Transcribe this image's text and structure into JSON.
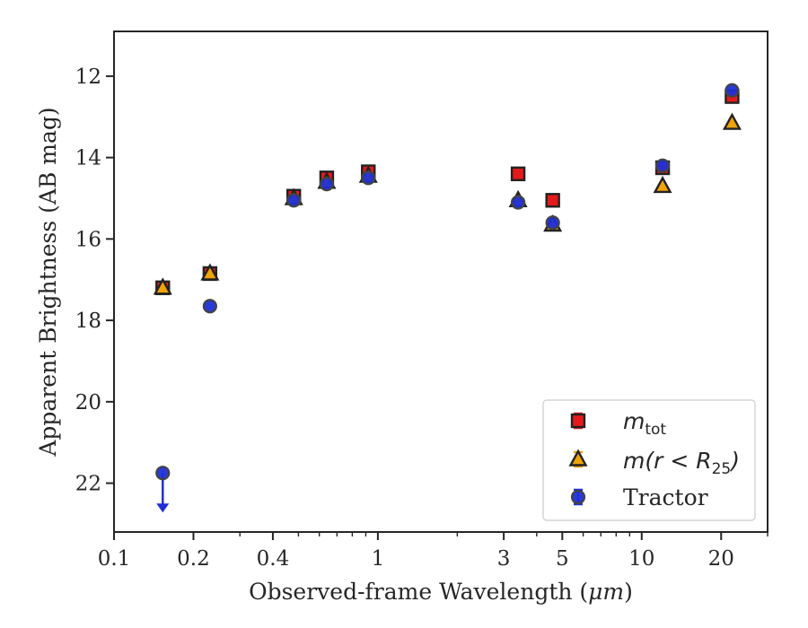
{
  "chart_data": {
    "type": "scatter",
    "xlabel_text": "Observed-frame Wavelength (",
    "xlabel_unit": "μm",
    "xlabel_close": ")",
    "ylabel": "Apparent Brightness (AB mag)",
    "xscale": "log",
    "yscale_inverted": true,
    "xlim": [
      0.1,
      30
    ],
    "ylim": [
      23.2,
      10.9
    ],
    "grid": false,
    "legend_position": "lower-right",
    "x_ticks": [
      {
        "value": 0.1,
        "label": "0.1"
      },
      {
        "value": 0.2,
        "label": "0.2"
      },
      {
        "value": 0.4,
        "label": "0.4"
      },
      {
        "value": 1,
        "label": "1"
      },
      {
        "value": 3,
        "label": "3"
      },
      {
        "value": 5,
        "label": "5"
      },
      {
        "value": 10,
        "label": "10"
      },
      {
        "value": 20,
        "label": "20"
      }
    ],
    "y_ticks": [
      {
        "value": 12,
        "label": "12"
      },
      {
        "value": 14,
        "label": "14"
      },
      {
        "value": 16,
        "label": "16"
      },
      {
        "value": 18,
        "label": "18"
      },
      {
        "value": 20,
        "label": "20"
      },
      {
        "value": 22,
        "label": "22"
      }
    ],
    "series": [
      {
        "key": "mtot",
        "legend_base": "m",
        "legend_sub": "tot",
        "marker": "square",
        "color": "#e41a1c",
        "edge": "#222222",
        "x": [
          0.153,
          0.231,
          0.48,
          0.64,
          0.92,
          3.4,
          4.6,
          12.0,
          22.0
        ],
        "y": [
          17.2,
          16.85,
          14.95,
          14.5,
          14.35,
          14.4,
          15.05,
          14.25,
          12.5
        ]
      },
      {
        "key": "mR25",
        "legend_base": "m",
        "legend_paren_open": "(r < ",
        "legend_R": "R",
        "legend_sub": "25",
        "legend_paren_close": ")",
        "marker": "triangle",
        "color": "#f0a30a",
        "edge": "#222222",
        "x": [
          0.153,
          0.231,
          0.48,
          0.64,
          0.92,
          3.4,
          4.6,
          12.0,
          22.0
        ],
        "y": [
          17.2,
          16.85,
          15.0,
          14.6,
          14.45,
          15.05,
          15.65,
          14.7,
          13.15
        ]
      },
      {
        "key": "tractor",
        "legend_label": "Tractor",
        "marker": "circle",
        "color": "#1f2fd6",
        "edge": "#444444",
        "x": [
          0.153,
          0.231,
          0.48,
          0.64,
          0.92,
          3.4,
          4.6,
          12.0,
          22.0
        ],
        "y": [
          21.75,
          17.65,
          15.05,
          14.65,
          14.5,
          15.1,
          15.6,
          14.2,
          12.35
        ],
        "upper_limit_index": 0
      }
    ]
  }
}
